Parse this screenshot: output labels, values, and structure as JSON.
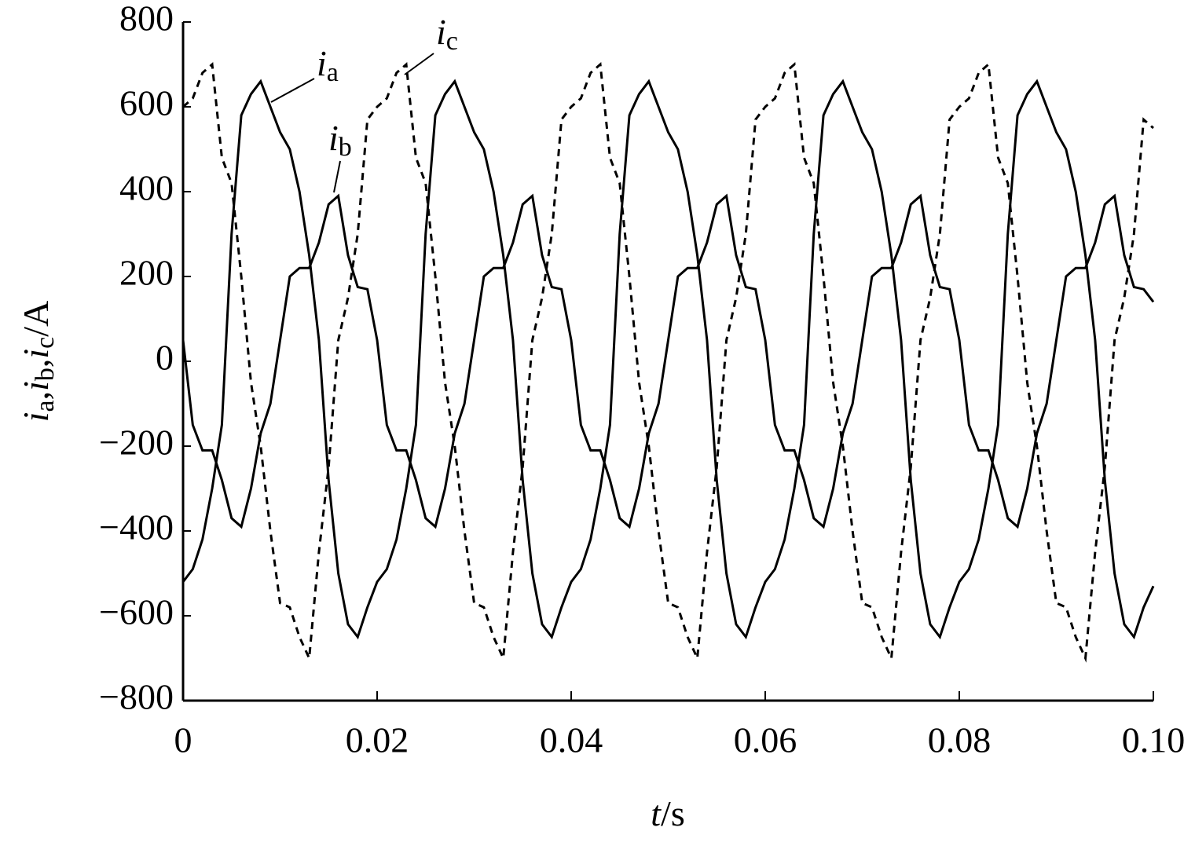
{
  "chart_data": {
    "type": "line",
    "x_label": "t/s",
    "y_label": "ia,ib,ic/A",
    "x": [
      0,
      0.001,
      0.002,
      0.003,
      0.004,
      0.005,
      0.006,
      0.007,
      0.008,
      0.009,
      0.01,
      0.011,
      0.012,
      0.013,
      0.014,
      0.015,
      0.016,
      0.017,
      0.018,
      0.019,
      0.02,
      0.021,
      0.022,
      0.023,
      0.024,
      0.025,
      0.026,
      0.027,
      0.028,
      0.029,
      0.03,
      0.031,
      0.032,
      0.033,
      0.034,
      0.035,
      0.036,
      0.037,
      0.038,
      0.039,
      0.04,
      0.041,
      0.042,
      0.043,
      0.044,
      0.045,
      0.046,
      0.047,
      0.048,
      0.049,
      0.05,
      0.051,
      0.052,
      0.053,
      0.054,
      0.055,
      0.056,
      0.057,
      0.058,
      0.059,
      0.06,
      0.061,
      0.062,
      0.063,
      0.064,
      0.065,
      0.066,
      0.067,
      0.068,
      0.069,
      0.07,
      0.071,
      0.072,
      0.073,
      0.074,
      0.075,
      0.076,
      0.077,
      0.078,
      0.079,
      0.08,
      0.081,
      0.082,
      0.083,
      0.084,
      0.085,
      0.086,
      0.087,
      0.088,
      0.089,
      0.09,
      0.091,
      0.092,
      0.093,
      0.094,
      0.095,
      0.096,
      0.097,
      0.098,
      0.099,
      0.1
    ],
    "series": [
      {
        "name": "ia",
        "color": "#000000",
        "style": "solid",
        "values": [
          -520,
          -490,
          -420,
          -300,
          -150,
          300,
          580,
          630,
          660,
          600,
          540,
          500,
          400,
          250,
          50,
          -280,
          -500,
          -620,
          -650,
          -580,
          -520,
          -490,
          -420,
          -300,
          -150,
          300,
          580,
          630,
          660,
          600,
          540,
          500,
          400,
          250,
          50,
          -280,
          -500,
          -620,
          -650,
          -580,
          -520,
          -490,
          -420,
          -300,
          -150,
          300,
          580,
          630,
          660,
          600,
          540,
          500,
          400,
          250,
          50,
          -280,
          -500,
          -620,
          -650,
          -580,
          -520,
          -490,
          -420,
          -300,
          -150,
          300,
          580,
          630,
          660,
          600,
          540,
          500,
          400,
          250,
          50,
          -280,
          -500,
          -620,
          -650,
          -580,
          -520,
          -490,
          -420,
          -300,
          -150,
          300,
          580,
          630,
          660,
          600,
          540,
          500,
          400,
          250,
          50,
          -280,
          -500,
          -620,
          -650,
          -580,
          -530
        ]
      },
      {
        "name": "ib",
        "color": "#000000",
        "style": "solid",
        "values": [
          50,
          -150,
          -210,
          -210,
          -280,
          -370,
          -390,
          -300,
          -170,
          -100,
          50,
          200,
          220,
          220,
          280,
          370,
          390,
          250,
          175,
          170,
          50,
          -150,
          -210,
          -210,
          -280,
          -370,
          -390,
          -300,
          -170,
          -100,
          50,
          200,
          220,
          220,
          280,
          370,
          390,
          250,
          175,
          170,
          50,
          -150,
          -210,
          -210,
          -280,
          -370,
          -390,
          -300,
          -170,
          -100,
          50,
          200,
          220,
          220,
          280,
          370,
          390,
          250,
          175,
          170,
          50,
          -150,
          -210,
          -210,
          -280,
          -370,
          -390,
          -300,
          -170,
          -100,
          50,
          200,
          220,
          220,
          280,
          370,
          390,
          250,
          175,
          170,
          50,
          -150,
          -210,
          -210,
          -280,
          -370,
          -390,
          -300,
          -170,
          -100,
          50,
          200,
          220,
          220,
          280,
          370,
          390,
          250,
          175,
          170,
          140
        ]
      },
      {
        "name": "ic",
        "color": "#000000",
        "style": "dashed",
        "values": [
          600,
          620,
          680,
          700,
          480,
          420,
          200,
          -50,
          -200,
          -400,
          -570,
          -580,
          -650,
          -700,
          -450,
          -250,
          50,
          150,
          300,
          570,
          600,
          620,
          680,
          700,
          480,
          420,
          200,
          -50,
          -200,
          -400,
          -570,
          -580,
          -650,
          -700,
          -450,
          -250,
          50,
          150,
          300,
          570,
          600,
          620,
          680,
          700,
          480,
          420,
          200,
          -50,
          -200,
          -400,
          -570,
          -580,
          -650,
          -700,
          -450,
          -250,
          50,
          150,
          300,
          570,
          600,
          620,
          680,
          700,
          480,
          420,
          200,
          -50,
          -200,
          -400,
          -570,
          -580,
          -650,
          -700,
          -450,
          -250,
          50,
          150,
          300,
          570,
          600,
          620,
          680,
          700,
          480,
          420,
          200,
          -50,
          -200,
          -400,
          -570,
          -580,
          -650,
          -700,
          -450,
          -250,
          50,
          150,
          300,
          570,
          550
        ]
      }
    ],
    "xlim": [
      0,
      0.1
    ],
    "xticks": [
      0,
      0.02,
      0.04,
      0.06,
      0.08,
      {
        "value": 0.1,
        "label": "0.10"
      }
    ],
    "ylim": [
      -800,
      800
    ],
    "yticks": [
      {
        "value": -800,
        "label": "−800"
      },
      {
        "value": -600,
        "label": "−600"
      },
      {
        "value": -400,
        "label": "−400"
      },
      {
        "value": -200,
        "label": "−200"
      },
      0,
      200,
      400,
      600,
      800
    ],
    "grid": false
  }
}
